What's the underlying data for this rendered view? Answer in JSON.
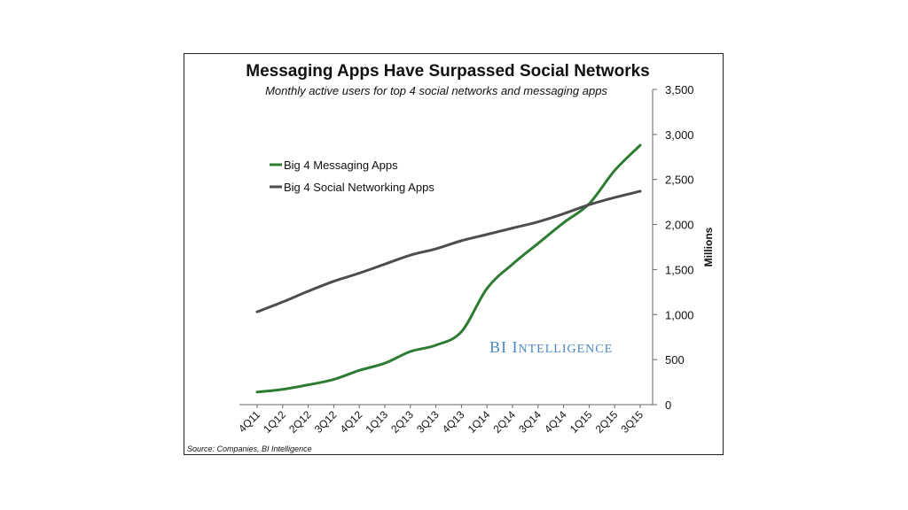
{
  "chart_data": {
    "type": "line",
    "title": "Messaging Apps Have Surpassed Social Networks",
    "subtitle": "Monthly active users for top 4 social networks and messaging apps",
    "ylabel": "Millions",
    "xlabel": "",
    "ylim": [
      0,
      3500
    ],
    "yticks": [
      "0",
      "500",
      "1,000",
      "1,500",
      "2,000",
      "2,500",
      "3,000",
      "3,500"
    ],
    "ytick_values": [
      0,
      500,
      1000,
      1500,
      2000,
      2500,
      3000,
      3500
    ],
    "categories": [
      "4Q11",
      "1Q12",
      "2Q12",
      "3Q12",
      "4Q12",
      "1Q13",
      "2Q13",
      "3Q13",
      "4Q13",
      "1Q14",
      "2Q14",
      "3Q14",
      "4Q14",
      "1Q15",
      "2Q15",
      "3Q15"
    ],
    "series": [
      {
        "name": "Big 4 Messaging Apps",
        "color": "#2e7b34",
        "values": [
          140,
          170,
          220,
          280,
          380,
          460,
          590,
          660,
          810,
          1290,
          1560,
          1790,
          2020,
          2230,
          2600,
          2880
        ]
      },
      {
        "name": "Big 4 Social Networking Apps",
        "color": "#4d4d4f",
        "values": [
          1030,
          1140,
          1260,
          1370,
          1460,
          1560,
          1660,
          1730,
          1820,
          1890,
          1960,
          2030,
          2120,
          2220,
          2300,
          2370
        ]
      }
    ],
    "legend_position": "upper-left",
    "grid": false,
    "source": "Source: Companies, BI Intelligence",
    "watermark": "BI INTELLIGENCE"
  }
}
